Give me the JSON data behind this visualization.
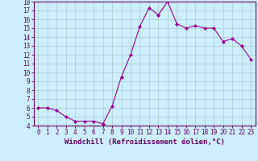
{
  "x": [
    0,
    1,
    2,
    3,
    4,
    5,
    6,
    7,
    8,
    9,
    10,
    11,
    12,
    13,
    14,
    15,
    16,
    17,
    18,
    19,
    20,
    21,
    22,
    23
  ],
  "y": [
    6,
    6,
    5.7,
    5,
    4.5,
    4.5,
    4.5,
    4.2,
    6.2,
    9.5,
    12,
    15.2,
    17.3,
    16.5,
    18,
    15.5,
    15,
    15.3,
    15,
    15,
    13.5,
    13.8,
    13,
    11.5
  ],
  "line_color": "#990099",
  "marker": "D",
  "marker_size": 2.0,
  "bg_color": "#cceeff",
  "grid_color": "#aacccc",
  "axis_color": "#660066",
  "xlabel": "Windchill (Refroidissement éolien,°C)",
  "xlim": [
    -0.5,
    23.5
  ],
  "ylim": [
    4,
    18
  ],
  "xticks": [
    0,
    1,
    2,
    3,
    4,
    5,
    6,
    7,
    8,
    9,
    10,
    11,
    12,
    13,
    14,
    15,
    16,
    17,
    18,
    19,
    20,
    21,
    22,
    23
  ],
  "yticks": [
    4,
    5,
    6,
    7,
    8,
    9,
    10,
    11,
    12,
    13,
    14,
    15,
    16,
    17,
    18
  ],
  "tick_fontsize": 5.5,
  "label_fontsize": 6.5
}
